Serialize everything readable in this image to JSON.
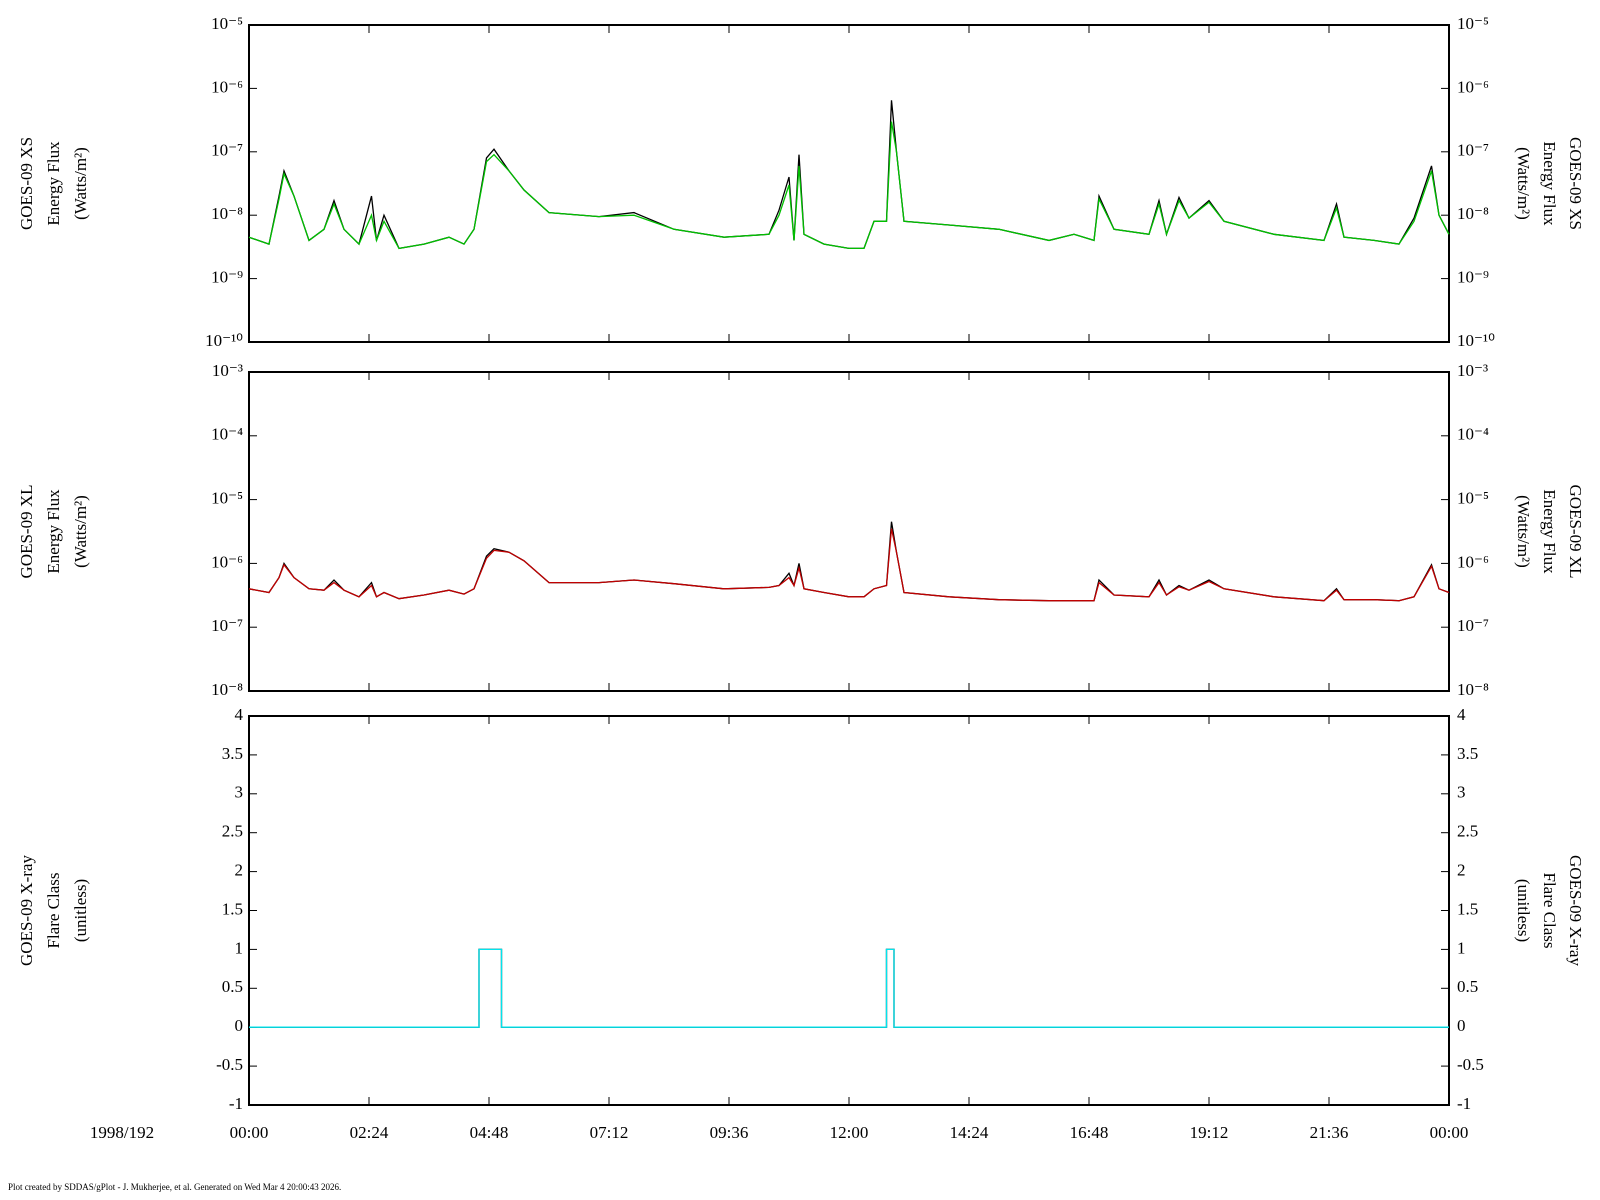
{
  "chart_data": [
    {
      "type": "line",
      "log_scale": true,
      "y_label": [
        "GOES-09 XS",
        "Energy Flux",
        "(Watts/m²)"
      ],
      "ylim": [
        1e-10,
        1e-05
      ],
      "yticks": [
        {
          "value": 1e-10,
          "label": "10⁻¹⁰"
        },
        {
          "value": 1e-09,
          "label": "10⁻⁹"
        },
        {
          "value": 1e-08,
          "label": "10⁻⁸"
        },
        {
          "value": 1e-07,
          "label": "10⁻⁷"
        },
        {
          "value": 1e-06,
          "label": "10⁻⁶"
        },
        {
          "value": 1e-05,
          "label": "10⁻⁵"
        }
      ],
      "x": [
        0,
        0.4,
        0.6,
        0.7,
        0.9,
        1.2,
        1.5,
        1.7,
        1.9,
        2.2,
        2.45,
        2.55,
        2.7,
        3.0,
        3.5,
        4.0,
        4.3,
        4.5,
        4.75,
        4.9,
        5.2,
        5.5,
        6.0,
        7.0,
        7.7,
        8.5,
        9.5,
        10.4,
        10.6,
        10.8,
        10.9,
        11.0,
        11.1,
        11.5,
        12.0,
        12.3,
        12.5,
        12.75,
        12.85,
        12.95,
        13.1,
        14.0,
        15.0,
        16.0,
        16.5,
        16.9,
        17.0,
        17.3,
        18.0,
        18.2,
        18.35,
        18.6,
        18.8,
        19.2,
        19.5,
        20.5,
        21.5,
        21.75,
        21.9,
        22.5,
        23.0,
        23.3,
        23.65,
        23.8,
        24.0
      ],
      "series": [
        {
          "color": "#000000",
          "values": [
            4.5e-09,
            3.5e-09,
            2e-08,
            5e-08,
            2e-08,
            4e-09,
            6e-09,
            1.7e-08,
            6e-09,
            3.5e-09,
            2e-08,
            4e-09,
            1e-08,
            3e-09,
            3.5e-09,
            4.5e-09,
            3.5e-09,
            6e-09,
            8e-08,
            1.1e-07,
            5e-08,
            2.5e-08,
            1.1e-08,
            9.5e-09,
            1.1e-08,
            6e-09,
            4.5e-09,
            5e-09,
            1.2e-08,
            4e-08,
            4e-09,
            9e-08,
            5e-09,
            3.5e-09,
            3e-09,
            3e-09,
            8e-09,
            8e-09,
            6.5e-07,
            1e-07,
            8e-09,
            7e-09,
            6e-09,
            4e-09,
            5e-09,
            4e-09,
            2e-08,
            6e-09,
            5e-09,
            1.7e-08,
            5e-09,
            1.9e-08,
            9e-09,
            1.7e-08,
            8e-09,
            5e-09,
            4e-09,
            1.5e-08,
            4.5e-09,
            4e-09,
            3.5e-09,
            9e-09,
            6e-08,
            1e-08,
            5e-09
          ]
        },
        {
          "color": "#00c000",
          "values": [
            4.5e-09,
            3.5e-09,
            1.8e-08,
            4.5e-08,
            2e-08,
            4e-09,
            6e-09,
            1.5e-08,
            6e-09,
            3.5e-09,
            1e-08,
            4e-09,
            8e-09,
            3e-09,
            3.5e-09,
            4.5e-09,
            3.5e-09,
            6e-09,
            7e-08,
            9e-08,
            5e-08,
            2.5e-08,
            1.1e-08,
            9.5e-09,
            1e-08,
            6e-09,
            4.5e-09,
            5e-09,
            1e-08,
            3e-08,
            4e-09,
            6e-08,
            5e-09,
            3.5e-09,
            3e-09,
            3e-09,
            8e-09,
            8e-09,
            3e-07,
            1e-07,
            8e-09,
            7e-09,
            6e-09,
            4e-09,
            5e-09,
            4e-09,
            1.8e-08,
            6e-09,
            5e-09,
            1.5e-08,
            5e-09,
            1.7e-08,
            9e-09,
            1.6e-08,
            8e-09,
            5e-09,
            4e-09,
            1.3e-08,
            4.5e-09,
            4e-09,
            3.5e-09,
            8e-09,
            5e-08,
            1e-08,
            5e-09
          ]
        }
      ]
    },
    {
      "type": "line",
      "log_scale": true,
      "y_label": [
        "GOES-09 XL",
        "Energy Flux",
        "(Watts/m²)"
      ],
      "ylim": [
        1e-08,
        0.001
      ],
      "yticks": [
        {
          "value": 1e-08,
          "label": "10⁻⁸"
        },
        {
          "value": 1e-07,
          "label": "10⁻⁷"
        },
        {
          "value": 1e-06,
          "label": "10⁻⁶"
        },
        {
          "value": 1e-05,
          "label": "10⁻⁵"
        },
        {
          "value": 0.0001,
          "label": "10⁻⁴"
        },
        {
          "value": 0.001,
          "label": "10⁻³"
        }
      ],
      "x": [
        0,
        0.4,
        0.6,
        0.7,
        0.9,
        1.2,
        1.5,
        1.7,
        1.9,
        2.2,
        2.45,
        2.55,
        2.7,
        3.0,
        3.5,
        4.0,
        4.3,
        4.5,
        4.75,
        4.9,
        5.2,
        5.5,
        6.0,
        7.0,
        7.7,
        8.5,
        9.5,
        10.4,
        10.6,
        10.8,
        10.9,
        11.0,
        11.1,
        11.5,
        12.0,
        12.3,
        12.5,
        12.75,
        12.85,
        12.95,
        13.1,
        14.0,
        15.0,
        16.0,
        16.5,
        16.9,
        17.0,
        17.3,
        18.0,
        18.2,
        18.35,
        18.6,
        18.8,
        19.2,
        19.5,
        20.5,
        21.5,
        21.75,
        21.9,
        22.5,
        23.0,
        23.3,
        23.65,
        23.8,
        24.0
      ],
      "series": [
        {
          "color": "#000000",
          "values": [
            4e-07,
            3.5e-07,
            6e-07,
            1e-06,
            6e-07,
            4e-07,
            3.8e-07,
            5.5e-07,
            3.8e-07,
            3e-07,
            5e-07,
            3e-07,
            3.5e-07,
            2.8e-07,
            3.2e-07,
            3.8e-07,
            3.3e-07,
            4e-07,
            1.3e-06,
            1.7e-06,
            1.5e-06,
            1.1e-06,
            5e-07,
            5e-07,
            5.5e-07,
            4.8e-07,
            4e-07,
            4.2e-07,
            4.5e-07,
            7e-07,
            4.5e-07,
            1e-06,
            4e-07,
            3.5e-07,
            3e-07,
            3e-07,
            4e-07,
            4.5e-07,
            4.5e-06,
            1.5e-06,
            3.5e-07,
            3e-07,
            2.7e-07,
            2.6e-07,
            2.6e-07,
            2.6e-07,
            5.5e-07,
            3.2e-07,
            3e-07,
            5.5e-07,
            3.2e-07,
            4.5e-07,
            3.8e-07,
            5.5e-07,
            4e-07,
            3e-07,
            2.6e-07,
            4e-07,
            2.7e-07,
            2.7e-07,
            2.6e-07,
            3e-07,
            9.5e-07,
            4e-07,
            3.5e-07
          ]
        },
        {
          "color": "#c00000",
          "values": [
            4e-07,
            3.5e-07,
            6e-07,
            9.5e-07,
            6e-07,
            4e-07,
            3.8e-07,
            5e-07,
            3.8e-07,
            3e-07,
            4.5e-07,
            3e-07,
            3.5e-07,
            2.8e-07,
            3.2e-07,
            3.8e-07,
            3.3e-07,
            4e-07,
            1.2e-06,
            1.6e-06,
            1.5e-06,
            1.1e-06,
            5e-07,
            5e-07,
            5.5e-07,
            4.8e-07,
            4e-07,
            4.2e-07,
            4.5e-07,
            6e-07,
            4.5e-07,
            8.5e-07,
            4e-07,
            3.5e-07,
            3e-07,
            3e-07,
            4e-07,
            4.5e-07,
            3.5e-06,
            1.5e-06,
            3.5e-07,
            3e-07,
            2.7e-07,
            2.6e-07,
            2.6e-07,
            2.6e-07,
            5e-07,
            3.2e-07,
            3e-07,
            5e-07,
            3.2e-07,
            4.3e-07,
            3.8e-07,
            5.2e-07,
            4e-07,
            3e-07,
            2.6e-07,
            3.8e-07,
            2.7e-07,
            2.7e-07,
            2.6e-07,
            3e-07,
            9e-07,
            4e-07,
            3.5e-07
          ]
        }
      ]
    },
    {
      "type": "line",
      "log_scale": false,
      "y_label": [
        "GOES-09 X-ray",
        "Flare Class",
        "(unitless)"
      ],
      "ylim": [
        -1,
        4
      ],
      "yticks": [
        -1,
        -0.5,
        0,
        0.5,
        1,
        1.5,
        2,
        2.5,
        3,
        3.5,
        4
      ],
      "x": [
        0,
        4.6,
        4.6,
        5.05,
        5.05,
        12.75,
        12.75,
        12.9,
        12.9,
        24
      ],
      "series": [
        {
          "color": "#000000",
          "values": [
            0,
            0,
            1,
            1,
            0,
            0,
            1,
            1,
            0,
            0
          ]
        },
        {
          "color": "#00e5ee",
          "values": [
            0,
            0,
            1,
            1,
            0,
            0,
            1,
            1,
            0,
            0
          ]
        }
      ],
      "date_label": "1998/192",
      "xlim": [
        0,
        24
      ],
      "xticks": [
        {
          "value": 0,
          "label": "00:00"
        },
        {
          "value": 2.4,
          "label": "02:24"
        },
        {
          "value": 4.8,
          "label": "04:48"
        },
        {
          "value": 7.2,
          "label": "07:12"
        },
        {
          "value": 9.6,
          "label": "09:36"
        },
        {
          "value": 12,
          "label": "12:00"
        },
        {
          "value": 14.4,
          "label": "14:24"
        },
        {
          "value": 16.8,
          "label": "16:48"
        },
        {
          "value": 19.2,
          "label": "19:12"
        },
        {
          "value": 21.6,
          "label": "21:36"
        },
        {
          "value": 24,
          "label": "00:00"
        }
      ]
    }
  ],
  "footer": "Plot created by SDDAS/gPlot - J. Mukherjee, et al.  Generated on Wed Mar 4 20:00:43 2026."
}
